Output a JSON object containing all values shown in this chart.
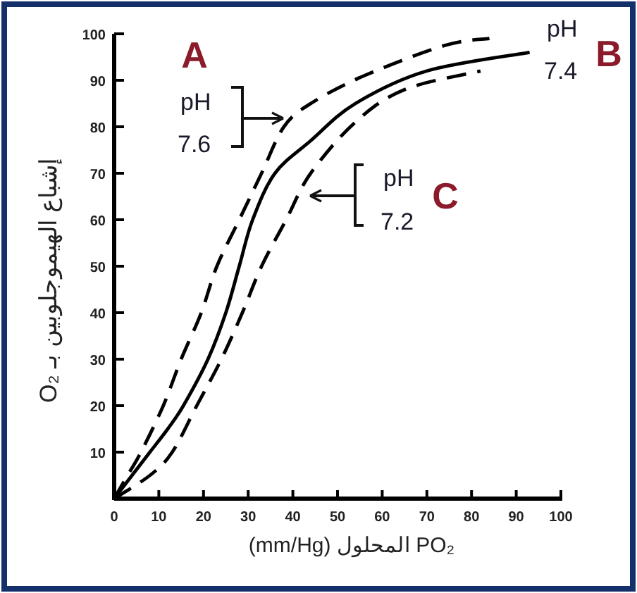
{
  "chart_data": {
    "type": "line",
    "xlabel": "PO₂ المحلول (mm/Hg)",
    "ylabel": "إشباع الهيموجلوبين بـ O₂",
    "xlim": [
      0,
      100
    ],
    "ylim": [
      0,
      100
    ],
    "xticks": [
      0,
      10,
      20,
      30,
      40,
      50,
      60,
      70,
      80,
      90,
      100
    ],
    "yticks": [
      {
        "value": 0,
        "label": null
      },
      10,
      20,
      30,
      40,
      50,
      60,
      70,
      80,
      90,
      100
    ],
    "marker": "none",
    "annotations": [
      "A",
      "B",
      "C"
    ],
    "series": [
      {
        "name": "pH 7.6",
        "color": "#000000",
        "line_style": "dashed",
        "x": [
          0,
          3,
          6,
          11,
          15,
          19.5,
          23,
          28,
          33,
          38,
          44,
          56,
          74,
          84
        ],
        "values": [
          0,
          5,
          10,
          20,
          30,
          40,
          50,
          60,
          70,
          80,
          85,
          91,
          97.5,
          99
        ]
      },
      {
        "name": "pH 7.4",
        "color": "#000000",
        "line_style": "solid",
        "x": [
          0,
          4,
          8,
          12,
          15.5,
          21,
          25,
          28,
          31,
          36,
          44,
          54,
          70,
          93
        ],
        "values": [
          0,
          5,
          10,
          15,
          20,
          30,
          40,
          50,
          60,
          70,
          77,
          85,
          92,
          96
        ]
      },
      {
        "name": "pH 7.2",
        "color": "#000000",
        "line_style": "dashed",
        "x": [
          0,
          8,
          13,
          18.5,
          24,
          28.7,
          33,
          38.5,
          44,
          54,
          65,
          82
        ],
        "values": [
          0,
          5,
          10,
          20,
          30,
          40,
          50,
          60,
          70,
          81,
          88,
          92
        ]
      }
    ]
  }
}
